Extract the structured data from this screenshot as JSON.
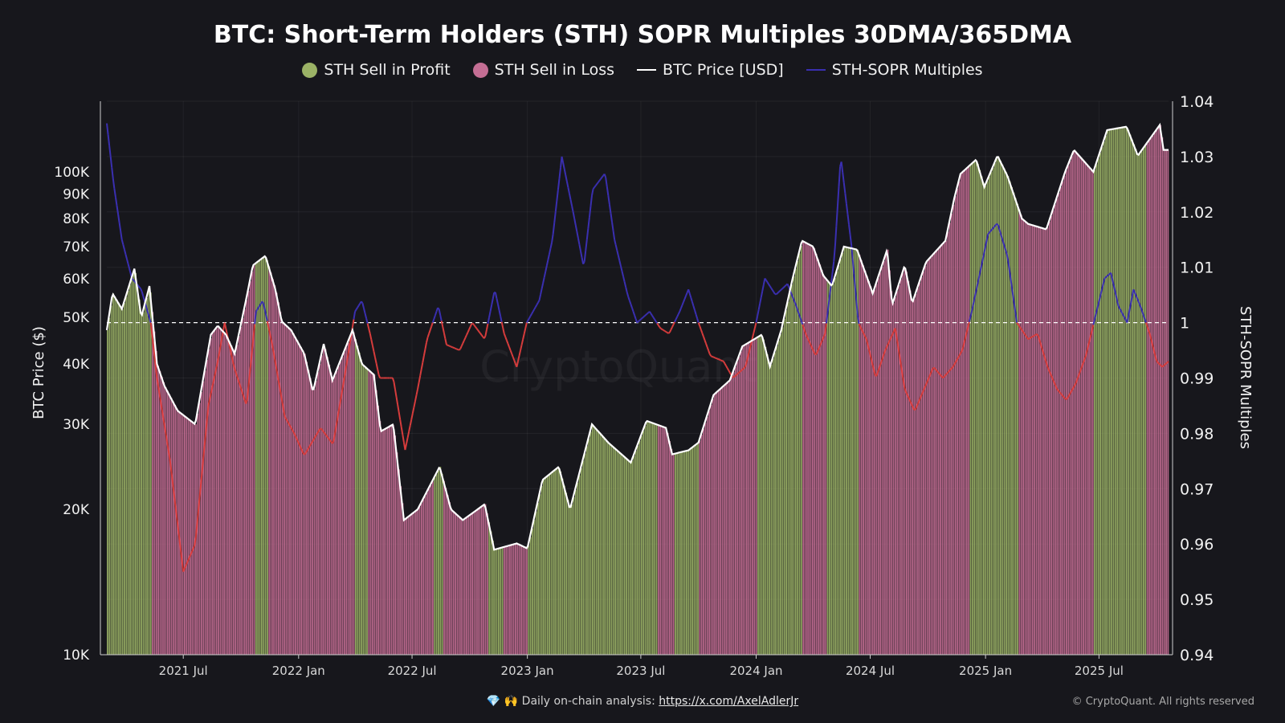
{
  "chart_data": {
    "type": "line",
    "title": "BTC: Short-Term Holders (STH) SOPR Multiples 30DMA/365DMA",
    "legend": [
      {
        "name": "STH Sell in Profit",
        "color": "#9bb266",
        "kind": "dot"
      },
      {
        "name": "STH Sell in Loss",
        "color": "#c46e94",
        "kind": "dot"
      },
      {
        "name": "BTC Price [USD]",
        "color": "#ffffff",
        "kind": "line"
      },
      {
        "name": "STH-SOPR Multiples",
        "color": "#3a2fb0",
        "kind": "line"
      }
    ],
    "legend_position": "top-center",
    "ylabel_left": "BTC Price ($)",
    "ylabel_right": "STH-SOPR Multiples",
    "y_left_scale": "log",
    "y_left_range": [
      10000,
      140000
    ],
    "y_left_ticks": [
      {
        "v": 10000,
        "label": "10K"
      },
      {
        "v": 20000,
        "label": "20K"
      },
      {
        "v": 30000,
        "label": "30K"
      },
      {
        "v": 40000,
        "label": "40K"
      },
      {
        "v": 50000,
        "label": "50K"
      },
      {
        "v": 60000,
        "label": "60K"
      },
      {
        "v": 70000,
        "label": "70K"
      },
      {
        "v": 80000,
        "label": "80K"
      },
      {
        "v": 90000,
        "label": "90K"
      },
      {
        "v": 100000,
        "label": "100K"
      }
    ],
    "y_right_range": [
      0.94,
      1.04
    ],
    "y_right_ticks": [
      {
        "v": 0.94,
        "label": "0.94"
      },
      {
        "v": 0.95,
        "label": "0.95"
      },
      {
        "v": 0.96,
        "label": "0.96"
      },
      {
        "v": 0.97,
        "label": "0.97"
      },
      {
        "v": 0.98,
        "label": "0.98"
      },
      {
        "v": 0.99,
        "label": "0.99"
      },
      {
        "v": 1.0,
        "label": "1"
      },
      {
        "v": 1.01,
        "label": "1.01"
      },
      {
        "v": 1.02,
        "label": "1.02"
      },
      {
        "v": 1.03,
        "label": "1.03"
      },
      {
        "v": 1.04,
        "label": "1.04"
      }
    ],
    "x_range": [
      "2021-03-01",
      "2025-10-20"
    ],
    "x_ticks": [
      {
        "date": "2021-07-01",
        "label": "2021 Jul"
      },
      {
        "date": "2022-01-01",
        "label": "2022 Jan"
      },
      {
        "date": "2022-07-01",
        "label": "2022 Jul"
      },
      {
        "date": "2023-01-01",
        "label": "2023 Jan"
      },
      {
        "date": "2023-07-01",
        "label": "2023 Jul"
      },
      {
        "date": "2024-01-01",
        "label": "2024 Jan"
      },
      {
        "date": "2024-07-01",
        "label": "2024 Jul"
      },
      {
        "date": "2025-01-01",
        "label": "2025 Jan"
      },
      {
        "date": "2025-07-01",
        "label": "2025 Jul"
      }
    ],
    "reference_line": 1.0,
    "grid": true,
    "btc_price": [
      [
        "2021-03-01",
        47000
      ],
      [
        "2021-03-10",
        56000
      ],
      [
        "2021-03-25",
        52000
      ],
      [
        "2021-04-14",
        63000
      ],
      [
        "2021-04-25",
        50000
      ],
      [
        "2021-05-08",
        58000
      ],
      [
        "2021-05-20",
        40000
      ],
      [
        "2021-06-01",
        36000
      ],
      [
        "2021-06-22",
        32000
      ],
      [
        "2021-07-20",
        30000
      ],
      [
        "2021-08-14",
        46000
      ],
      [
        "2021-08-25",
        48000
      ],
      [
        "2021-09-07",
        46000
      ],
      [
        "2021-09-21",
        42000
      ],
      [
        "2021-10-10",
        55000
      ],
      [
        "2021-10-20",
        64000
      ],
      [
        "2021-11-09",
        67000
      ],
      [
        "2021-11-25",
        57000
      ],
      [
        "2021-12-05",
        49000
      ],
      [
        "2021-12-20",
        47000
      ],
      [
        "2022-01-10",
        42000
      ],
      [
        "2022-01-24",
        35000
      ],
      [
        "2022-02-10",
        44000
      ],
      [
        "2022-02-24",
        37000
      ],
      [
        "2022-03-28",
        47000
      ],
      [
        "2022-04-12",
        40000
      ],
      [
        "2022-05-01",
        38000
      ],
      [
        "2022-05-12",
        29000
      ],
      [
        "2022-06-01",
        30000
      ],
      [
        "2022-06-18",
        19000
      ],
      [
        "2022-07-10",
        20000
      ],
      [
        "2022-08-14",
        24500
      ],
      [
        "2022-09-01",
        20000
      ],
      [
        "2022-09-20",
        19000
      ],
      [
        "2022-10-25",
        20500
      ],
      [
        "2022-11-09",
        16500
      ],
      [
        "2022-12-15",
        17000
      ],
      [
        "2023-01-01",
        16600
      ],
      [
        "2023-01-25",
        23000
      ],
      [
        "2023-02-20",
        24500
      ],
      [
        "2023-03-10",
        20000
      ],
      [
        "2023-04-14",
        30000
      ],
      [
        "2023-05-10",
        27500
      ],
      [
        "2023-06-15",
        25000
      ],
      [
        "2023-07-10",
        30500
      ],
      [
        "2023-08-10",
        29500
      ],
      [
        "2023-08-20",
        26000
      ],
      [
        "2023-09-15",
        26500
      ],
      [
        "2023-10-01",
        27500
      ],
      [
        "2023-10-25",
        34500
      ],
      [
        "2023-11-20",
        37000
      ],
      [
        "2023-12-10",
        43500
      ],
      [
        "2024-01-10",
        46000
      ],
      [
        "2024-01-23",
        39500
      ],
      [
        "2024-02-10",
        47000
      ],
      [
        "2024-02-28",
        60000
      ],
      [
        "2024-03-14",
        72000
      ],
      [
        "2024-04-01",
        70000
      ],
      [
        "2024-04-17",
        61000
      ],
      [
        "2024-05-01",
        58000
      ],
      [
        "2024-05-20",
        70000
      ],
      [
        "2024-06-10",
        69000
      ],
      [
        "2024-07-05",
        56000
      ],
      [
        "2024-07-28",
        69000
      ],
      [
        "2024-08-05",
        53000
      ],
      [
        "2024-08-25",
        64000
      ],
      [
        "2024-09-06",
        53500
      ],
      [
        "2024-09-28",
        65000
      ],
      [
        "2024-10-29",
        72000
      ],
      [
        "2024-11-12",
        88000
      ],
      [
        "2024-11-22",
        99000
      ],
      [
        "2024-12-17",
        106000
      ],
      [
        "2024-12-30",
        93000
      ],
      [
        "2025-01-20",
        108000
      ],
      [
        "2025-02-05",
        98000
      ],
      [
        "2025-02-28",
        80000
      ],
      [
        "2025-03-10",
        78000
      ],
      [
        "2025-04-08",
        76000
      ],
      [
        "2025-05-08",
        100000
      ],
      [
        "2025-05-22",
        111000
      ],
      [
        "2025-06-22",
        100000
      ],
      [
        "2025-07-14",
        122000
      ],
      [
        "2025-08-14",
        124000
      ],
      [
        "2025-09-01",
        108000
      ],
      [
        "2025-10-06",
        125000
      ],
      [
        "2025-10-12",
        111000
      ],
      [
        "2025-10-20",
        111000
      ]
    ],
    "sopr_multiple": [
      [
        "2021-03-01",
        1.036
      ],
      [
        "2021-03-12",
        1.025
      ],
      [
        "2021-03-25",
        1.015
      ],
      [
        "2021-04-10",
        1.008
      ],
      [
        "2021-04-25",
        1.006
      ],
      [
        "2021-05-10",
        1.0
      ],
      [
        "2021-05-20",
        0.99
      ],
      [
        "2021-06-10",
        0.975
      ],
      [
        "2021-07-01",
        0.955
      ],
      [
        "2021-07-20",
        0.96
      ],
      [
        "2021-08-10",
        0.985
      ],
      [
        "2021-08-25",
        0.993
      ],
      [
        "2021-09-05",
        1.0
      ],
      [
        "2021-09-20",
        0.992
      ],
      [
        "2021-10-10",
        0.985
      ],
      [
        "2021-10-25",
        1.002
      ],
      [
        "2021-11-05",
        1.004
      ],
      [
        "2021-11-20",
        0.996
      ],
      [
        "2021-12-10",
        0.983
      ],
      [
        "2021-12-25",
        0.98
      ],
      [
        "2022-01-10",
        0.976
      ],
      [
        "2022-02-05",
        0.981
      ],
      [
        "2022-02-25",
        0.978
      ],
      [
        "2022-03-15",
        0.99
      ],
      [
        "2022-04-01",
        1.002
      ],
      [
        "2022-04-12",
        1.004
      ],
      [
        "2022-04-25",
        0.998
      ],
      [
        "2022-05-10",
        0.99
      ],
      [
        "2022-06-01",
        0.99
      ],
      [
        "2022-06-20",
        0.977
      ],
      [
        "2022-07-10",
        0.988
      ],
      [
        "2022-07-25",
        0.997
      ],
      [
        "2022-08-12",
        1.003
      ],
      [
        "2022-08-25",
        0.996
      ],
      [
        "2022-09-15",
        0.995
      ],
      [
        "2022-10-05",
        1.0
      ],
      [
        "2022-10-25",
        0.997
      ],
      [
        "2022-11-10",
        1.006
      ],
      [
        "2022-11-25",
        0.998
      ],
      [
        "2022-12-15",
        0.992
      ],
      [
        "2022-12-31",
        1.0
      ],
      [
        "2023-01-20",
        1.004
      ],
      [
        "2023-02-10",
        1.015
      ],
      [
        "2023-02-25",
        1.03
      ],
      [
        "2023-03-15",
        1.02
      ],
      [
        "2023-04-01",
        1.01
      ],
      [
        "2023-04-15",
        1.024
      ],
      [
        "2023-05-05",
        1.027
      ],
      [
        "2023-05-20",
        1.015
      ],
      [
        "2023-06-10",
        1.005
      ],
      [
        "2023-06-25",
        1.0
      ],
      [
        "2023-07-15",
        1.002
      ],
      [
        "2023-08-01",
        0.999
      ],
      [
        "2023-08-15",
        0.998
      ],
      [
        "2023-09-01",
        1.002
      ],
      [
        "2023-09-15",
        1.006
      ],
      [
        "2023-10-01",
        1.0
      ],
      [
        "2023-10-20",
        0.994
      ],
      [
        "2023-11-10",
        0.993
      ],
      [
        "2023-11-25",
        0.99
      ],
      [
        "2023-12-15",
        0.992
      ],
      [
        "2024-01-01",
        1.0
      ],
      [
        "2024-01-15",
        1.008
      ],
      [
        "2024-02-01",
        1.005
      ],
      [
        "2024-02-20",
        1.007
      ],
      [
        "2024-03-05",
        1.003
      ],
      [
        "2024-03-20",
        0.998
      ],
      [
        "2024-04-05",
        0.994
      ],
      [
        "2024-04-20",
        0.998
      ],
      [
        "2024-05-05",
        1.012
      ],
      [
        "2024-05-15",
        1.03
      ],
      [
        "2024-06-01",
        1.014
      ],
      [
        "2024-06-12",
        1.0
      ],
      [
        "2024-06-25",
        0.997
      ],
      [
        "2024-07-10",
        0.99
      ],
      [
        "2024-07-25",
        0.995
      ],
      [
        "2024-08-10",
        0.999
      ],
      [
        "2024-08-25",
        0.988
      ],
      [
        "2024-09-10",
        0.984
      ],
      [
        "2024-09-25",
        0.988
      ],
      [
        "2024-10-10",
        0.992
      ],
      [
        "2024-10-25",
        0.99
      ],
      [
        "2024-11-10",
        0.992
      ],
      [
        "2024-11-25",
        0.995
      ],
      [
        "2024-12-10",
        1.002
      ],
      [
        "2024-12-25",
        1.01
      ],
      [
        "2025-01-05",
        1.016
      ],
      [
        "2025-01-20",
        1.018
      ],
      [
        "2025-02-05",
        1.012
      ],
      [
        "2025-02-20",
        1.0
      ],
      [
        "2025-03-10",
        0.997
      ],
      [
        "2025-03-25",
        0.998
      ],
      [
        "2025-04-10",
        0.992
      ],
      [
        "2025-04-25",
        0.988
      ],
      [
        "2025-05-10",
        0.986
      ],
      [
        "2025-05-25",
        0.989
      ],
      [
        "2025-06-10",
        0.994
      ],
      [
        "2025-06-25",
        1.001
      ],
      [
        "2025-07-10",
        1.008
      ],
      [
        "2025-07-20",
        1.009
      ],
      [
        "2025-08-01",
        1.003
      ],
      [
        "2025-08-15",
        1.0
      ],
      [
        "2025-08-25",
        1.006
      ],
      [
        "2025-09-05",
        1.003
      ],
      [
        "2025-09-20",
        0.998
      ],
      [
        "2025-10-01",
        0.993
      ],
      [
        "2025-10-10",
        0.992
      ],
      [
        "2025-10-20",
        0.993
      ]
    ]
  },
  "footer": {
    "icons": "💎 🙌",
    "text": "Daily on-chain analysis:",
    "link": "https://x.com/AxelAdlerJr",
    "copyright": "© CryptoQuant. All rights reserved",
    "watermark": "CryptoQuant"
  }
}
